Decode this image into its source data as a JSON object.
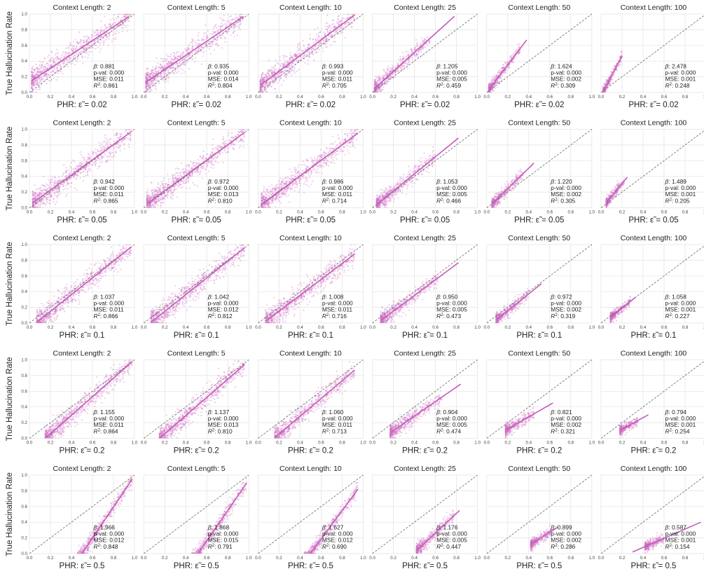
{
  "chart_data": {
    "type": "scatter",
    "layout": "grid",
    "rows": 5,
    "cols": 6,
    "ylabel": "True Hallucination Rate",
    "xlim": [
      0,
      1
    ],
    "ylim": [
      0,
      1
    ],
    "xticks": [
      "0.0",
      "0.2",
      "0.4",
      "0.6",
      "0.8",
      "1.0"
    ],
    "yticks": [
      "0.0",
      "0.2",
      "0.4",
      "0.6",
      "0.8",
      "1.0"
    ],
    "grid": true,
    "reference_line": "y = x (dashed)",
    "colors": {
      "points": "#cf6fc4",
      "fit": "#c45ab8",
      "reference": "#666666",
      "grid": "#e2e2e2"
    },
    "context_lengths": [
      2,
      5,
      10,
      25,
      50,
      100
    ],
    "eps_values": [
      "0.02",
      "0.05",
      "0.1",
      "0.2",
      "0.5"
    ],
    "panels": [
      {
        "title": "Context Length: 2",
        "xlabel": "PHR: ε̃ = 0.02",
        "beta": "0.881",
        "pval": "0.000",
        "mse": "0.011",
        "r2": "0.861",
        "fit": {
          "x0": 0.02,
          "y0": 0.15,
          "x1": 0.95,
          "y1": 0.97
        },
        "cloud": {
          "xmin": 0.02,
          "xmax": 0.97
        }
      },
      {
        "title": "Context Length: 5",
        "xlabel": "PHR: ε̃ = 0.02",
        "beta": "0.935",
        "pval": "0.000",
        "mse": "0.014",
        "r2": "0.804",
        "fit": {
          "x0": 0.02,
          "y0": 0.13,
          "x1": 0.95,
          "y1": 0.97
        },
        "cloud": {
          "xmin": 0.02,
          "xmax": 0.95
        }
      },
      {
        "title": "Context Length: 10",
        "xlabel": "PHR: ε̃ = 0.02",
        "beta": "0.993",
        "pval": "0.000",
        "mse": "0.011",
        "r2": "0.705",
        "fit": {
          "x0": 0.02,
          "y0": 0.09,
          "x1": 0.92,
          "y1": 0.99
        },
        "cloud": {
          "xmin": 0.02,
          "xmax": 0.92
        }
      },
      {
        "title": "Context Length: 25",
        "xlabel": "PHR: ε̃ = 0.02",
        "beta": "1.205",
        "pval": "0.000",
        "mse": "0.005",
        "r2": "0.459",
        "fit": {
          "x0": 0.02,
          "y0": 0.05,
          "x1": 0.78,
          "y1": 0.97
        },
        "cloud": {
          "xmin": 0.02,
          "xmax": 0.55
        }
      },
      {
        "title": "Context Length: 50",
        "xlabel": "PHR: ε̃ = 0.02",
        "beta": "1.624",
        "pval": "0.000",
        "mse": "0.002",
        "r2": "0.309",
        "fit": {
          "x0": 0.03,
          "y0": 0.05,
          "x1": 0.38,
          "y1": 0.67
        },
        "cloud": {
          "xmin": 0.02,
          "xmax": 0.32
        }
      },
      {
        "title": "Context Length: 100",
        "xlabel": "PHR: ε̃ = 0.02",
        "beta": "2.478",
        "pval": "0.000",
        "mse": "0.001",
        "r2": "0.248",
        "fit": {
          "x0": 0.03,
          "y0": 0.03,
          "x1": 0.2,
          "y1": 0.47
        },
        "cloud": {
          "xmin": 0.02,
          "xmax": 0.2
        }
      },
      {
        "title": "Context Length: 2",
        "xlabel": "PHR: ε̃ = 0.05",
        "beta": "0.942",
        "pval": "0.000",
        "mse": "0.011",
        "r2": "0.865",
        "fit": {
          "x0": 0.03,
          "y0": 0.06,
          "x1": 0.96,
          "y1": 0.96
        },
        "cloud": {
          "xmin": 0.03,
          "xmax": 0.97
        }
      },
      {
        "title": "Context Length: 5",
        "xlabel": "PHR: ε̃ = 0.05",
        "beta": "0.972",
        "pval": "0.000",
        "mse": "0.013",
        "r2": "0.810",
        "fit": {
          "x0": 0.03,
          "y0": 0.05,
          "x1": 0.96,
          "y1": 0.96
        },
        "cloud": {
          "xmin": 0.03,
          "xmax": 0.96
        }
      },
      {
        "title": "Context Length: 10",
        "xlabel": "PHR: ε̃ = 0.05",
        "beta": "0.986",
        "pval": "0.000",
        "mse": "0.011",
        "r2": "0.714",
        "fit": {
          "x0": 0.03,
          "y0": 0.04,
          "x1": 0.95,
          "y1": 0.95
        },
        "cloud": {
          "xmin": 0.03,
          "xmax": 0.95
        }
      },
      {
        "title": "Context Length: 25",
        "xlabel": "PHR: ε̃ = 0.05",
        "beta": "1.053",
        "pval": "0.000",
        "mse": "0.005",
        "r2": "0.466",
        "fit": {
          "x0": 0.05,
          "y0": 0.05,
          "x1": 0.82,
          "y1": 0.89
        },
        "cloud": {
          "xmin": 0.04,
          "xmax": 0.6
        }
      },
      {
        "title": "Context Length: 50",
        "xlabel": "PHR: ε̃ = 0.05",
        "beta": "1.220",
        "pval": "0.000",
        "mse": "0.002",
        "r2": "0.305",
        "fit": {
          "x0": 0.06,
          "y0": 0.06,
          "x1": 0.45,
          "y1": 0.57
        },
        "cloud": {
          "xmin": 0.05,
          "xmax": 0.35
        }
      },
      {
        "title": "Context Length: 100",
        "xlabel": "PHR: ε̃ = 0.05",
        "beta": "1.489",
        "pval": "0.000",
        "mse": "0.001",
        "r2": "0.205",
        "fit": {
          "x0": 0.06,
          "y0": 0.08,
          "x1": 0.25,
          "y1": 0.39
        },
        "cloud": {
          "xmin": 0.05,
          "xmax": 0.22
        }
      },
      {
        "title": "Context Length: 2",
        "xlabel": "PHR: ε̃ = 0.1",
        "beta": "1.037",
        "pval": "0.000",
        "mse": "0.011",
        "r2": "0.866",
        "fit": {
          "x0": 0.08,
          "y0": 0.02,
          "x1": 0.97,
          "y1": 0.97
        },
        "cloud": {
          "xmin": 0.07,
          "xmax": 0.97
        }
      },
      {
        "title": "Context Length: 5",
        "xlabel": "PHR: ε̃ = 0.1",
        "beta": "1.042",
        "pval": "0.000",
        "mse": "0.012",
        "r2": "0.812",
        "fit": {
          "x0": 0.08,
          "y0": 0.02,
          "x1": 0.96,
          "y1": 0.96
        },
        "cloud": {
          "xmin": 0.07,
          "xmax": 0.96
        }
      },
      {
        "title": "Context Length: 10",
        "xlabel": "PHR: ε̃ = 0.1",
        "beta": "1.008",
        "pval": "0.000",
        "mse": "0.011",
        "r2": "0.716",
        "fit": {
          "x0": 0.08,
          "y0": 0.03,
          "x1": 0.92,
          "y1": 0.88
        },
        "cloud": {
          "xmin": 0.07,
          "xmax": 0.92
        }
      },
      {
        "title": "Context Length: 25",
        "xlabel": "PHR: ε̃ = 0.1",
        "beta": "0.950",
        "pval": "0.000",
        "mse": "0.005",
        "r2": "0.473",
        "fit": {
          "x0": 0.09,
          "y0": 0.04,
          "x1": 0.82,
          "y1": 0.77
        },
        "cloud": {
          "xmin": 0.08,
          "xmax": 0.62
        }
      },
      {
        "title": "Context Length: 50",
        "xlabel": "PHR: ε̃ = 0.1",
        "beta": "0.972",
        "pval": "0.000",
        "mse": "0.002",
        "r2": "0.319",
        "fit": {
          "x0": 0.1,
          "y0": 0.05,
          "x1": 0.52,
          "y1": 0.5
        },
        "cloud": {
          "xmin": 0.09,
          "xmax": 0.4
        }
      },
      {
        "title": "Context Length: 100",
        "xlabel": "PHR: ε̃ = 0.1",
        "beta": "1.058",
        "pval": "0.000",
        "mse": "0.001",
        "r2": "0.227",
        "fit": {
          "x0": 0.1,
          "y0": 0.08,
          "x1": 0.33,
          "y1": 0.33
        },
        "cloud": {
          "xmin": 0.09,
          "xmax": 0.28
        }
      },
      {
        "title": "Context Length: 2",
        "xlabel": "PHR: ε̃ = 0.2",
        "beta": "1.155",
        "pval": "0.000",
        "mse": "0.011",
        "r2": "0.864",
        "fit": {
          "x0": 0.16,
          "y0": 0.01,
          "x1": 0.98,
          "y1": 0.98
        },
        "cloud": {
          "xmin": 0.15,
          "xmax": 0.98
        }
      },
      {
        "title": "Context Length: 5",
        "xlabel": "PHR: ε̃ = 0.2",
        "beta": "1.137",
        "pval": "0.000",
        "mse": "0.013",
        "r2": "0.810",
        "fit": {
          "x0": 0.16,
          "y0": 0.01,
          "x1": 0.96,
          "y1": 0.94
        },
        "cloud": {
          "xmin": 0.15,
          "xmax": 0.96
        }
      },
      {
        "title": "Context Length: 10",
        "xlabel": "PHR: ε̃ = 0.2",
        "beta": "1.060",
        "pval": "0.000",
        "mse": "0.011",
        "r2": "0.713",
        "fit": {
          "x0": 0.17,
          "y0": 0.02,
          "x1": 0.92,
          "y1": 0.87
        },
        "cloud": {
          "xmin": 0.16,
          "xmax": 0.92
        }
      },
      {
        "title": "Context Length: 25",
        "xlabel": "PHR: ε̃ = 0.2",
        "beta": "0.904",
        "pval": "0.000",
        "mse": "0.005",
        "r2": "0.474",
        "fit": {
          "x0": 0.18,
          "y0": 0.08,
          "x1": 0.84,
          "y1": 0.69
        },
        "cloud": {
          "xmin": 0.17,
          "xmax": 0.66
        }
      },
      {
        "title": "Context Length: 50",
        "xlabel": "PHR: ε̃ = 0.2",
        "beta": "0.821",
        "pval": "0.000",
        "mse": "0.002",
        "r2": "0.321",
        "fit": {
          "x0": 0.19,
          "y0": 0.11,
          "x1": 0.63,
          "y1": 0.45
        },
        "cloud": {
          "xmin": 0.18,
          "xmax": 0.45
        }
      },
      {
        "title": "Context Length: 100",
        "xlabel": "PHR: ε̃ = 0.2",
        "beta": "0.794",
        "pval": "0.000",
        "mse": "0.001",
        "r2": "0.254",
        "fit": {
          "x0": 0.19,
          "y0": 0.11,
          "x1": 0.45,
          "y1": 0.3
        },
        "cloud": {
          "xmin": 0.18,
          "xmax": 0.35
        }
      },
      {
        "title": "Context Length: 2",
        "xlabel": "PHR: ε̃ = 0.5",
        "beta": "1.966",
        "pval": "0.000",
        "mse": "0.012",
        "r2": "0.848",
        "fit": {
          "x0": 0.5,
          "y0": 0.0,
          "x1": 0.98,
          "y1": 0.95
        },
        "cloud": {
          "xmin": 0.46,
          "xmax": 0.98
        }
      },
      {
        "title": "Context Length: 5",
        "xlabel": "PHR: ε̃ = 0.5",
        "beta": "1.868",
        "pval": "0.000",
        "mse": "0.015",
        "r2": "0.791",
        "fit": {
          "x0": 0.49,
          "y0": -0.05,
          "x1": 0.98,
          "y1": 0.9
        },
        "cloud": {
          "xmin": 0.46,
          "xmax": 0.98
        }
      },
      {
        "title": "Context Length: 10",
        "xlabel": "PHR: ε̃ = 0.5",
        "beta": "1.627",
        "pval": "0.000",
        "mse": "0.012",
        "r2": "0.690",
        "fit": {
          "x0": 0.47,
          "y0": -0.05,
          "x1": 0.95,
          "y1": 0.82
        },
        "cloud": {
          "xmin": 0.44,
          "xmax": 0.95
        }
      },
      {
        "title": "Context Length: 25",
        "xlabel": "PHR: ε̃ = 0.5",
        "beta": "1.176",
        "pval": "0.000",
        "mse": "0.005",
        "r2": "0.447",
        "fit": {
          "x0": 0.43,
          "y0": 0.05,
          "x1": 0.83,
          "y1": 0.55
        },
        "cloud": {
          "xmin": 0.42,
          "xmax": 0.78
        }
      },
      {
        "title": "Context Length: 50",
        "xlabel": "PHR: ε̃ = 0.5",
        "beta": "0.899",
        "pval": "0.000",
        "mse": "0.002",
        "r2": "0.286",
        "fit": {
          "x0": 0.42,
          "y0": 0.12,
          "x1": 0.68,
          "y1": 0.34
        },
        "cloud": {
          "xmin": 0.42,
          "xmax": 0.62
        }
      },
      {
        "title": "Context Length: 100",
        "xlabel": "PHR: ε̃ = 0.5",
        "beta": "0.587",
        "pval": "0.000",
        "mse": "0.001",
        "r2": "0.154",
        "fit": {
          "x0": 0.3,
          "y0": 0.02,
          "x1": 0.95,
          "y1": 0.4
        },
        "cloud": {
          "xmin": 0.42,
          "xmax": 0.6
        }
      }
    ]
  }
}
